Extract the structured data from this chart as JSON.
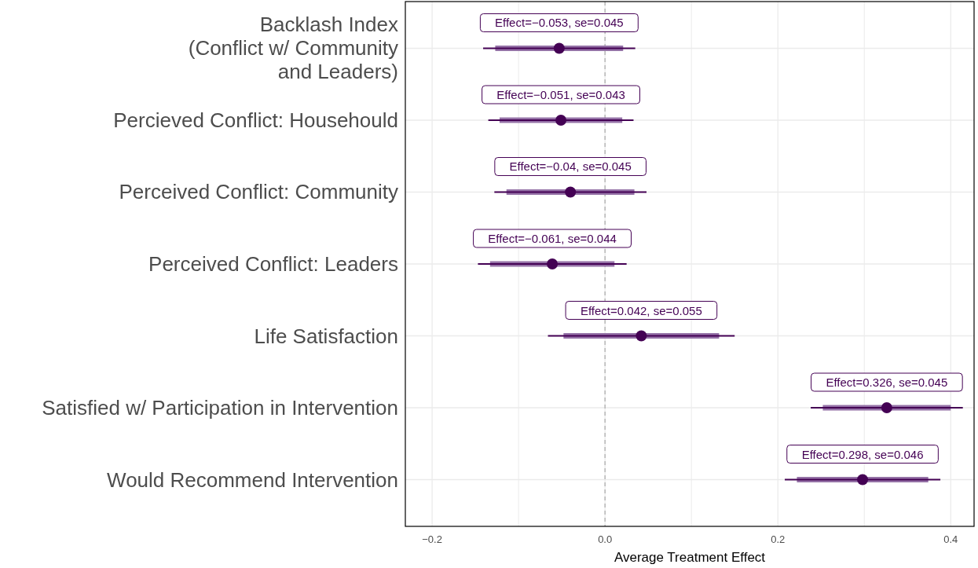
{
  "chart_data": {
    "type": "scatter",
    "orientation": "horizontal",
    "xlabel": "Average Treatment Effect",
    "categories": [
      "Backlash Index\n(Conflict w/ Community\nand Leaders)",
      "Percieved Conflict: Househould",
      "Perceived Conflict: Community",
      "Perceived Conflict: Leaders",
      "Life Satisfaction",
      "Satisfied w/ Participation in Intervention",
      "Would Recommend Intervention"
    ],
    "series": [
      {
        "type": "bar",
        "color": "#9471a6",
        "base": [
          -0.127,
          -0.122,
          -0.114,
          -0.133,
          -0.048,
          0.252,
          0.222
        ],
        "values": [
          0.148,
          0.142,
          0.148,
          0.144,
          0.18,
          0.148,
          0.152
        ]
      },
      {
        "color": "#440154",
        "values": [
          -0.053,
          -0.051,
          -0.04,
          -0.061,
          0.042,
          0.326,
          0.298
        ],
        "errors": [
          [
            -0.141,
            0.035
          ],
          [
            -0.135,
            0.033
          ],
          [
            -0.128,
            0.048
          ],
          [
            -0.147,
            0.025
          ],
          [
            -0.066,
            0.15
          ],
          [
            0.238,
            0.414
          ],
          [
            0.208,
            0.388
          ]
        ]
      }
    ],
    "xlim": [
      -0.231,
      0.427
    ],
    "xticks": [
      {
        "value": -0.2,
        "label": "−0.2"
      },
      {
        "value": -0.1,
        "label": null
      },
      {
        "value": 0,
        "label": "0.0"
      },
      {
        "value": 0.1,
        "label": null
      },
      {
        "value": 0.2,
        "label": "0.2"
      },
      {
        "value": 0.3,
        "label": null
      },
      {
        "value": 0.4,
        "label": "0.4"
      }
    ],
    "grid": true,
    "marker": "circle",
    "ref_lines": [
      {
        "axis": "x",
        "value": 0,
        "color": "#aaaaaa",
        "line_style": "dashed"
      }
    ],
    "annotations": [
      {
        "text": "Effect=−0.053, se=0.045",
        "x": -0.053,
        "y": "Backlash Index\n(Conflict w/ Community\nand Leaders)"
      },
      {
        "text": "Effect=−0.051, se=0.043",
        "x": -0.051,
        "y": "Percieved Conflict: Househould"
      },
      {
        "text": "Effect=−0.04, se=0.045",
        "x": -0.04,
        "y": "Perceived Conflict: Community"
      },
      {
        "text": "Effect=−0.061, se=0.044",
        "x": -0.061,
        "y": "Perceived Conflict: Leaders"
      },
      {
        "text": "Effect=0.042, se=0.055",
        "x": 0.042,
        "y": "Life Satisfaction"
      },
      {
        "text": "Effect=0.326, se=0.045",
        "x": 0.326,
        "y": "Satisfied w/ Participation in Intervention"
      },
      {
        "text": "Effect=0.298, se=0.046",
        "x": 0.298,
        "y": "Would Recommend Intervention"
      }
    ]
  }
}
